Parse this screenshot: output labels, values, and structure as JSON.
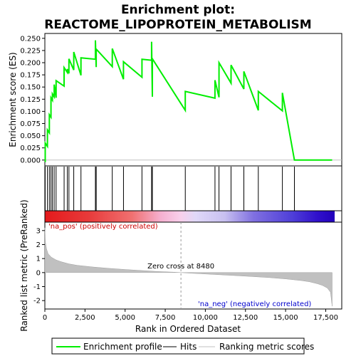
{
  "chart_data": {
    "type": "line",
    "title_line1": "Enrichment plot:",
    "title_line2": "REACTOME_LIPOPROTEIN_METABOLISM",
    "xlabel": "Rank in Ordered Dataset",
    "ylabel_top": "Enrichment score (ES)",
    "ylabel_bottom": "Ranked list metric (PreRanked)",
    "xlim": [
      0,
      18500
    ],
    "es_ylim": [
      -0.012,
      0.26
    ],
    "metric_ylim": [
      -2.6,
      3.6
    ],
    "x_ticks": [
      0,
      2500,
      5000,
      7500,
      10000,
      12500,
      15000,
      17500
    ],
    "x_tick_labels": [
      "0",
      "2,500",
      "5,000",
      "7,500",
      "10,000",
      "12,500",
      "15,000",
      "17,500"
    ],
    "es_ticks": [
      0.0,
      0.025,
      0.05,
      0.075,
      0.1,
      0.125,
      0.15,
      0.175,
      0.2,
      0.225,
      0.25
    ],
    "es_tick_labels": [
      "0.000",
      "0.025",
      "0.050",
      "0.075",
      "0.100",
      "0.125",
      "0.150",
      "0.175",
      "0.200",
      "0.225",
      "0.250"
    ],
    "metric_ticks": [
      -2,
      -1,
      0,
      1,
      2,
      3
    ],
    "metric_tick_labels": [
      "-2",
      "-1",
      "0",
      "1",
      "2",
      "3"
    ],
    "total_genes": 17900,
    "hits": [
      20,
      160,
      280,
      380,
      470,
      580,
      700,
      1200,
      1400,
      1500,
      1800,
      2250,
      3150,
      3200,
      4200,
      4900,
      6050,
      6650,
      6700,
      8750,
      10600,
      10850,
      11600,
      12400,
      13300,
      14800,
      15550
    ],
    "es_profile": {
      "x": [
        0,
        20,
        20,
        160,
        160,
        280,
        280,
        380,
        380,
        470,
        470,
        580,
        580,
        700,
        700,
        1200,
        1200,
        1400,
        1400,
        1500,
        1500,
        1800,
        1800,
        2250,
        2250,
        3150,
        3150,
        3200,
        3200,
        4200,
        4200,
        4900,
        4900,
        6050,
        6050,
        6650,
        6650,
        6700,
        6700,
        8750,
        8750,
        10600,
        10600,
        10850,
        10850,
        11600,
        11600,
        12400,
        12400,
        13300,
        13300,
        14800,
        14800,
        15550,
        15550,
        17900
      ],
      "y": [
        -0.003,
        -0.003,
        0.035,
        0.028,
        0.062,
        0.056,
        0.093,
        0.088,
        0.128,
        0.123,
        0.136,
        0.13,
        0.155,
        0.128,
        0.163,
        0.152,
        0.19,
        0.18,
        0.187,
        0.178,
        0.208,
        0.185,
        0.222,
        0.174,
        0.21,
        0.207,
        0.246,
        0.191,
        0.228,
        0.192,
        0.229,
        0.166,
        0.202,
        0.17,
        0.207,
        0.205,
        0.243,
        0.13,
        0.208,
        0.102,
        0.141,
        0.127,
        0.164,
        0.129,
        0.2,
        0.158,
        0.195,
        0.146,
        0.182,
        0.102,
        0.141,
        0.101,
        0.138,
        0.0,
        0.0,
        0.0
      ]
    },
    "metric_curve": {
      "x": [
        0,
        30,
        100,
        200,
        400,
        700,
        1000,
        1500,
        2000,
        3000,
        4000,
        5000,
        6000,
        7000,
        8000,
        8480,
        9000,
        10000,
        11000,
        12000,
        13000,
        14000,
        15000,
        16000,
        16500,
        17000,
        17300,
        17600,
        17800,
        17900
      ],
      "y": [
        3.2,
        2.2,
        1.7,
        1.35,
        1.1,
        0.9,
        0.78,
        0.62,
        0.52,
        0.4,
        0.3,
        0.22,
        0.15,
        0.08,
        0.03,
        0.0,
        -0.04,
        -0.1,
        -0.16,
        -0.22,
        -0.29,
        -0.36,
        -0.45,
        -0.57,
        -0.66,
        -0.8,
        -0.92,
        -1.1,
        -1.4,
        -2.4
      ]
    },
    "zero_cross": 8480,
    "zero_cross_label": "Zero cross at 8480",
    "pos_label": "'na_pos' (positively correlated)",
    "neg_label": "'na_neg' (negatively correlated)",
    "legend": {
      "placement": "bottom",
      "items": [
        "Enrichment profile",
        "Hits",
        "Ranking metric scores"
      ]
    },
    "colors": {
      "profile": "#00ee00",
      "hits": "#000000",
      "metric": "#c0c0c0",
      "pos_strong": "#e41a1c",
      "neutral": "#f4c6e8",
      "neg_strong": "#2200cc"
    },
    "grid": false
  }
}
